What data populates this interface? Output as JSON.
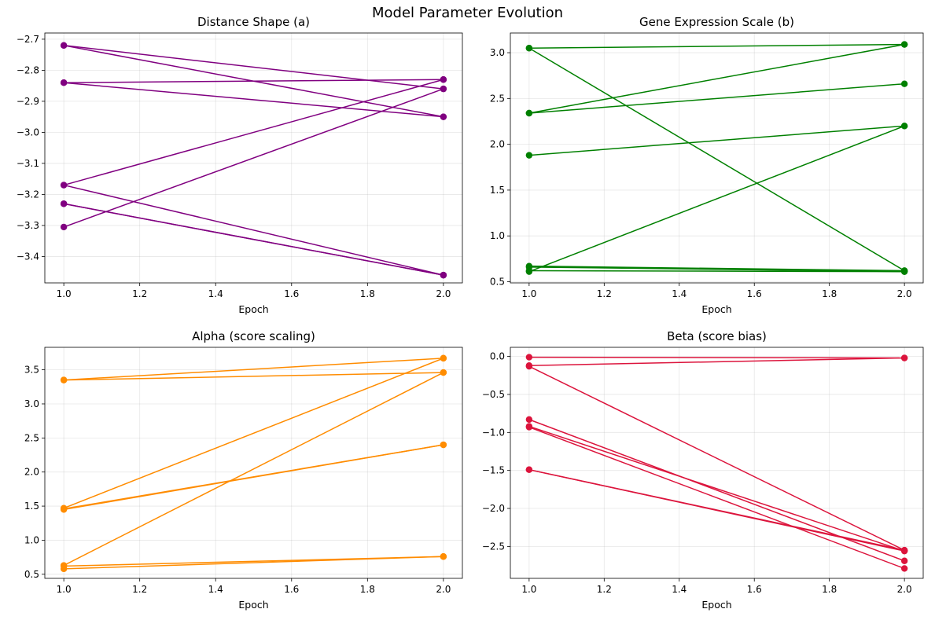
{
  "figure": {
    "suptitle": "Model Parameter Evolution"
  },
  "chart_data": [
    {
      "type": "line",
      "title": "Distance Shape (a)",
      "xlabel": "Epoch",
      "ylabel": "",
      "color": "#800080",
      "xlim": [
        0.95,
        2.05
      ],
      "ylim": [
        -3.485,
        -2.68
      ],
      "xticks": [
        1.0,
        1.2,
        1.4,
        1.6,
        1.8,
        2.0
      ],
      "xtick_labels": [
        "1.0",
        "1.2",
        "1.4",
        "1.6",
        "1.8",
        "2.0"
      ],
      "yticks": [
        -3.4,
        -3.3,
        -3.2,
        -3.1,
        -3.0,
        -2.9,
        -2.8,
        -2.7
      ],
      "ytick_labels": [
        "−3.4",
        "−3.3",
        "−3.2",
        "−3.1",
        "−3.0",
        "−2.9",
        "−2.8",
        "−2.7"
      ],
      "grid": true,
      "x": [
        1,
        2
      ],
      "series": [
        {
          "values": [
            -2.72,
            -2.86
          ]
        },
        {
          "values": [
            -2.72,
            -2.95
          ]
        },
        {
          "values": [
            -2.84,
            -2.83
          ]
        },
        {
          "values": [
            -2.84,
            -2.95
          ]
        },
        {
          "values": [
            -3.17,
            -2.83
          ]
        },
        {
          "values": [
            -3.17,
            -3.46
          ]
        },
        {
          "values": [
            -3.23,
            -3.46
          ]
        },
        {
          "values": [
            -3.23,
            -3.46
          ]
        },
        {
          "values": [
            -3.305,
            -2.86
          ]
        }
      ]
    },
    {
      "type": "line",
      "title": "Gene Expression Scale (b)",
      "xlabel": "Epoch",
      "ylabel": "",
      "color": "#008000",
      "xlim": [
        0.95,
        2.05
      ],
      "ylim": [
        0.487,
        3.215
      ],
      "xticks": [
        1.0,
        1.2,
        1.4,
        1.6,
        1.8,
        2.0
      ],
      "xtick_labels": [
        "1.0",
        "1.2",
        "1.4",
        "1.6",
        "1.8",
        "2.0"
      ],
      "yticks": [
        0.5,
        1.0,
        1.5,
        2.0,
        2.5,
        3.0
      ],
      "ytick_labels": [
        "0.5",
        "1.0",
        "1.5",
        "2.0",
        "2.5",
        "3.0"
      ],
      "grid": true,
      "x": [
        1,
        2
      ],
      "series": [
        {
          "values": [
            3.05,
            3.09
          ]
        },
        {
          "values": [
            3.05,
            0.62
          ]
        },
        {
          "values": [
            2.34,
            3.09
          ]
        },
        {
          "values": [
            2.34,
            2.66
          ]
        },
        {
          "values": [
            1.88,
            2.2
          ]
        },
        {
          "values": [
            0.67,
            0.62
          ]
        },
        {
          "values": [
            0.66,
            0.61
          ]
        },
        {
          "values": [
            0.62,
            0.61
          ]
        },
        {
          "values": [
            0.61,
            2.2
          ]
        }
      ]
    },
    {
      "type": "line",
      "title": "Alpha (score scaling)",
      "xlabel": "Epoch",
      "ylabel": "",
      "color": "#ff8c00",
      "xlim": [
        0.95,
        2.05
      ],
      "ylim": [
        0.44,
        3.83
      ],
      "xticks": [
        1.0,
        1.2,
        1.4,
        1.6,
        1.8,
        2.0
      ],
      "xtick_labels": [
        "1.0",
        "1.2",
        "1.4",
        "1.6",
        "1.8",
        "2.0"
      ],
      "yticks": [
        0.5,
        1.0,
        1.5,
        2.0,
        2.5,
        3.0,
        3.5
      ],
      "ytick_labels": [
        "0.5",
        "1.0",
        "1.5",
        "2.0",
        "2.5",
        "3.0",
        "3.5"
      ],
      "grid": true,
      "x": [
        1,
        2
      ],
      "series": [
        {
          "values": [
            3.35,
            3.67
          ]
        },
        {
          "values": [
            3.35,
            3.46
          ]
        },
        {
          "values": [
            1.47,
            3.67
          ]
        },
        {
          "values": [
            1.46,
            2.4
          ]
        },
        {
          "values": [
            1.45,
            2.4
          ]
        },
        {
          "values": [
            0.63,
            3.46
          ]
        },
        {
          "values": [
            0.62,
            0.76
          ]
        },
        {
          "values": [
            0.58,
            0.76
          ]
        }
      ]
    },
    {
      "type": "line",
      "title": "Beta (score bias)",
      "xlabel": "Epoch",
      "ylabel": "",
      "color": "#dc143c",
      "xlim": [
        0.95,
        2.05
      ],
      "ylim": [
        -2.92,
        0.12
      ],
      "xticks": [
        1.0,
        1.2,
        1.4,
        1.6,
        1.8,
        2.0
      ],
      "xtick_labels": [
        "1.0",
        "1.2",
        "1.4",
        "1.6",
        "1.8",
        "2.0"
      ],
      "yticks": [
        -2.5,
        -2.0,
        -1.5,
        -1.0,
        -0.5,
        0.0
      ],
      "ytick_labels": [
        "−2.5",
        "−2.0",
        "−1.5",
        "−1.0",
        "−0.5",
        "0.0"
      ],
      "grid": true,
      "x": [
        1,
        2
      ],
      "series": [
        {
          "values": [
            -0.01,
            -0.02
          ]
        },
        {
          "values": [
            -0.12,
            -0.02
          ]
        },
        {
          "values": [
            -0.13,
            -2.55
          ]
        },
        {
          "values": [
            -0.83,
            -2.69
          ]
        },
        {
          "values": [
            -0.92,
            -2.56
          ]
        },
        {
          "values": [
            -0.93,
            -2.79
          ]
        },
        {
          "values": [
            -1.49,
            -2.55
          ]
        },
        {
          "values": [
            -1.49,
            -2.56
          ]
        }
      ]
    }
  ]
}
